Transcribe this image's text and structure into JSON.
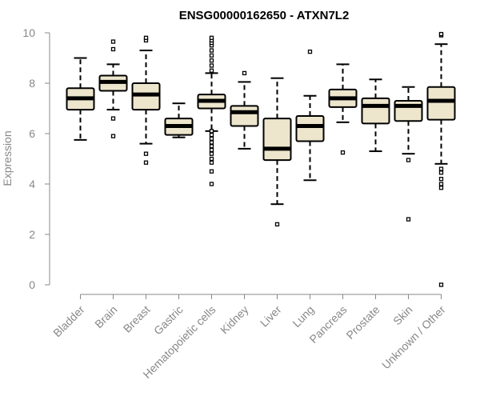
{
  "chart_data": {
    "type": "boxplot",
    "title": "ENSG00000162650 - ATXN7L2",
    "xlabel": "",
    "ylabel": "Expression",
    "ylim": [
      0,
      10
    ],
    "yticks": [
      0,
      2,
      4,
      6,
      8,
      10
    ],
    "box_fill": "#ede6cd",
    "categories": [
      "Bladder",
      "Brain",
      "Breast",
      "Gastric",
      "Hematopoietic cells",
      "Kidney",
      "Liver",
      "Lung",
      "Pancreas",
      "Prostate",
      "Skin",
      "Unknown / Other"
    ],
    "boxes": [
      {
        "category": "Bladder",
        "whisker_low": 5.75,
        "q1": 6.95,
        "median": 7.4,
        "q3": 7.8,
        "whisker_high": 9.0,
        "outliers": []
      },
      {
        "category": "Brain",
        "whisker_low": 6.95,
        "q1": 7.7,
        "median": 8.05,
        "q3": 8.3,
        "whisker_high": 8.75,
        "outliers": [
          5.9,
          6.6,
          9.35,
          9.65
        ]
      },
      {
        "category": "Breast",
        "whisker_low": 5.6,
        "q1": 6.95,
        "median": 7.55,
        "q3": 8.0,
        "whisker_high": 9.3,
        "outliers": [
          4.85,
          5.2,
          9.7,
          9.8
        ]
      },
      {
        "category": "Gastric",
        "whisker_low": 5.85,
        "q1": 5.95,
        "median": 6.3,
        "q3": 6.6,
        "whisker_high": 7.2,
        "outliers": []
      },
      {
        "category": "Hematopoietic cells",
        "whisker_low": 6.1,
        "q1": 7.0,
        "median": 7.3,
        "q3": 7.55,
        "whisker_high": 8.4,
        "outliers": [
          4.0,
          4.5,
          4.85,
          5.0,
          5.2,
          5.35,
          5.5,
          5.65,
          5.8,
          5.95,
          6.1,
          8.5,
          8.7,
          8.9,
          9.1,
          9.3,
          9.5,
          9.6,
          9.7,
          9.8
        ]
      },
      {
        "category": "Kidney",
        "whisker_low": 5.4,
        "q1": 6.3,
        "median": 6.85,
        "q3": 7.1,
        "whisker_high": 8.05,
        "outliers": [
          8.4
        ]
      },
      {
        "category": "Liver",
        "whisker_low": 3.2,
        "q1": 4.95,
        "median": 5.4,
        "q3": 6.6,
        "whisker_high": 8.2,
        "outliers": [
          2.4
        ]
      },
      {
        "category": "Lung",
        "whisker_low": 4.15,
        "q1": 5.7,
        "median": 6.3,
        "q3": 6.7,
        "whisker_high": 7.5,
        "outliers": [
          9.25
        ]
      },
      {
        "category": "Pancreas",
        "whisker_low": 6.45,
        "q1": 7.05,
        "median": 7.4,
        "q3": 7.75,
        "whisker_high": 8.75,
        "outliers": [
          5.25
        ]
      },
      {
        "category": "Prostate",
        "whisker_low": 5.3,
        "q1": 6.4,
        "median": 7.1,
        "q3": 7.4,
        "whisker_high": 8.15,
        "outliers": []
      },
      {
        "category": "Skin",
        "whisker_low": 5.2,
        "q1": 6.5,
        "median": 7.1,
        "q3": 7.3,
        "whisker_high": 7.85,
        "outliers": [
          2.6,
          4.95
        ]
      },
      {
        "category": "Unknown / Other",
        "whisker_low": 4.8,
        "q1": 6.55,
        "median": 7.3,
        "q3": 7.85,
        "whisker_high": 9.55,
        "outliers": [
          0.0,
          3.85,
          4.0,
          4.2,
          4.45,
          4.6,
          9.9,
          9.95
        ]
      }
    ]
  }
}
